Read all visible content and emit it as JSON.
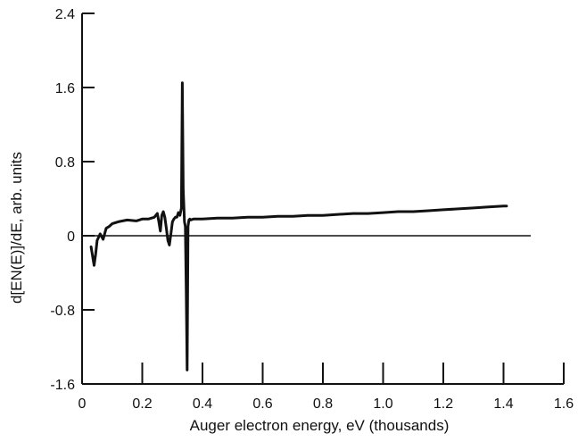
{
  "chart_data": {
    "type": "line",
    "title": "",
    "xlabel": "Auger electron energy, eV (thousands)",
    "ylabel": "d[EN(E)]/dE, arb. units",
    "xlim": [
      0,
      1.6
    ],
    "ylim": [
      -1.6,
      2.4
    ],
    "xticks": [
      0,
      0.2,
      0.4,
      0.6,
      0.8,
      1.0,
      1.2,
      1.4,
      1.6
    ],
    "xtick_labels": [
      "0",
      "0.2",
      "0.4",
      "0.6",
      "0.8",
      "1.0",
      "1.2",
      "1.4",
      "1.6"
    ],
    "yticks": [
      -1.6,
      -0.8,
      0,
      0.8,
      1.6,
      2.4
    ],
    "ytick_labels": [
      "-1.6",
      "-0.8",
      "0",
      "0.8",
      "1.6",
      "2.4"
    ],
    "grid": false,
    "zero_line": true,
    "series": [
      {
        "color": "#111111",
        "x": [
          0.03,
          0.035,
          0.04,
          0.045,
          0.05,
          0.06,
          0.07,
          0.08,
          0.09,
          0.1,
          0.12,
          0.15,
          0.18,
          0.2,
          0.22,
          0.24,
          0.25,
          0.255,
          0.26,
          0.265,
          0.27,
          0.275,
          0.28,
          0.285,
          0.29,
          0.295,
          0.3,
          0.305,
          0.31,
          0.315,
          0.32,
          0.325,
          0.33,
          0.333,
          0.336,
          0.34,
          0.343,
          0.346,
          0.349,
          0.352,
          0.355,
          0.358,
          0.36,
          0.37,
          0.4,
          0.45,
          0.5,
          0.55,
          0.6,
          0.65,
          0.7,
          0.75,
          0.8,
          0.85,
          0.9,
          0.95,
          1.0,
          1.05,
          1.1,
          1.15,
          1.2,
          1.25,
          1.3,
          1.35,
          1.4,
          1.41
        ],
        "y": [
          -0.12,
          -0.22,
          -0.32,
          -0.2,
          -0.05,
          0.02,
          -0.04,
          0.08,
          0.1,
          0.13,
          0.15,
          0.17,
          0.16,
          0.18,
          0.18,
          0.2,
          0.24,
          0.15,
          0.05,
          0.22,
          0.26,
          0.2,
          0.08,
          -0.05,
          -0.1,
          0.02,
          0.15,
          0.18,
          0.2,
          0.2,
          0.25,
          0.22,
          0.3,
          1.65,
          0.5,
          0.15,
          0.1,
          -0.6,
          -1.45,
          0.1,
          0.17,
          0.18,
          0.17,
          0.18,
          0.18,
          0.19,
          0.19,
          0.2,
          0.2,
          0.21,
          0.21,
          0.22,
          0.22,
          0.23,
          0.24,
          0.24,
          0.25,
          0.26,
          0.26,
          0.27,
          0.28,
          0.29,
          0.3,
          0.31,
          0.32,
          0.32
        ]
      }
    ]
  }
}
